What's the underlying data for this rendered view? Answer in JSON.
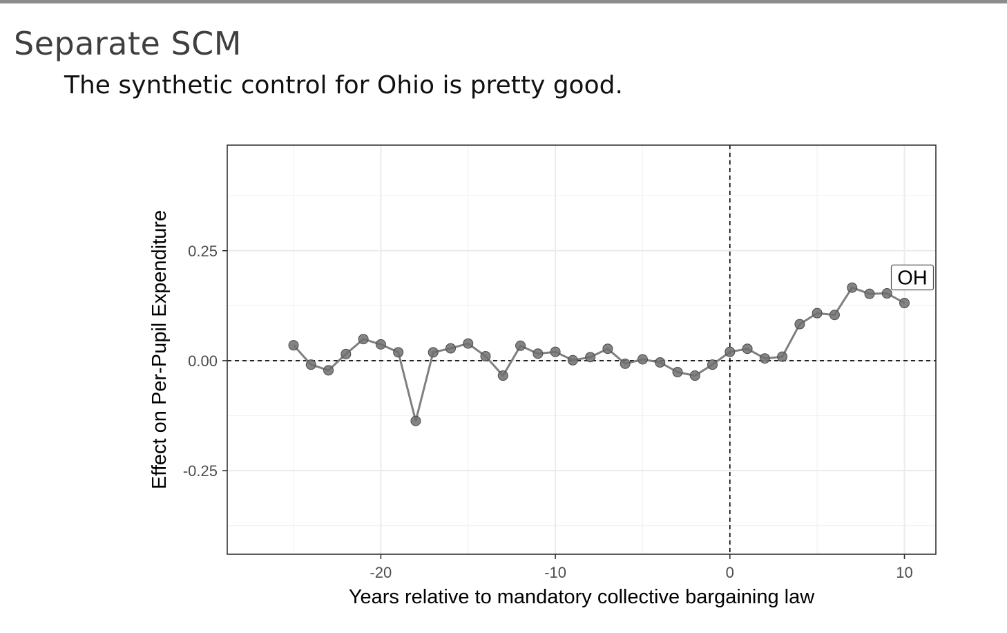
{
  "slide": {
    "title": "Separate SCM",
    "subtitle": "The synthetic control for Ohio is pretty good."
  },
  "chart_data": {
    "type": "line",
    "xlabel": "Years relative to mandatory collective bargaining law",
    "ylabel": "Effect on Per-Pupil Expenditure",
    "xlim": [
      -28.8,
      11.8
    ],
    "ylim": [
      -0.44,
      0.49
    ],
    "x_ticks": [
      -20,
      -10,
      0,
      10
    ],
    "x_tick_labels": [
      "-20",
      "-10",
      "0",
      "10"
    ],
    "y_ticks": [
      0.25,
      0.0,
      -0.25
    ],
    "y_tick_labels": [
      "0.25",
      "0.00",
      "-0.25"
    ],
    "grid": true,
    "reference_lines": {
      "x": 0,
      "y": 0,
      "style": "dashed"
    },
    "series": [
      {
        "label": "OH",
        "color": "#7f7f7f",
        "x": [
          -25,
          -24,
          -23,
          -22,
          -21,
          -20,
          -19,
          -18,
          -17,
          -16,
          -15,
          -14,
          -13,
          -12,
          -11,
          -10,
          -9,
          -8,
          -7,
          -6,
          -5,
          -4,
          -3,
          -2,
          -1,
          0,
          1,
          2,
          3,
          4,
          5,
          6,
          7,
          8,
          9,
          10
        ],
        "values": [
          0.035,
          -0.009,
          -0.022,
          0.015,
          0.049,
          0.037,
          0.019,
          -0.137,
          0.019,
          0.028,
          0.039,
          0.01,
          -0.034,
          0.034,
          0.016,
          0.02,
          0.001,
          0.008,
          0.027,
          -0.007,
          0.003,
          -0.004,
          -0.026,
          -0.034,
          -0.009,
          0.02,
          0.027,
          0.005,
          0.009,
          0.083,
          0.108,
          0.104,
          0.166,
          0.152,
          0.153,
          0.131
        ]
      }
    ]
  }
}
